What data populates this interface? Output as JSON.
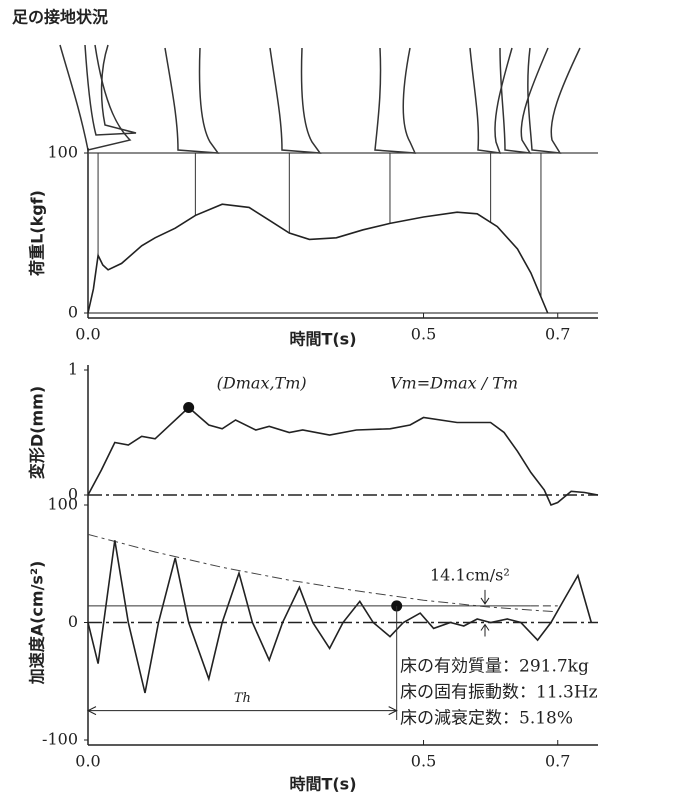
{
  "chart_data": [
    {
      "type": "line",
      "title": "足の接地状況",
      "ylabel": "荷重L(kgf)",
      "xlabel": "時間T(s)",
      "color": "#222",
      "xlim": [
        0,
        0.76
      ],
      "ylim": [
        0,
        100
      ],
      "yticks": [
        0,
        100
      ],
      "xticks": [
        {
          "value": 0,
          "label": "0.0"
        },
        0.5,
        0.7
      ],
      "grid": true,
      "x": [
        0,
        0.008,
        0.015,
        0.022,
        0.03,
        0.05,
        0.08,
        0.1,
        0.13,
        0.16,
        0.2,
        0.24,
        0.27,
        0.3,
        0.33,
        0.37,
        0.41,
        0.45,
        0.5,
        0.55,
        0.58,
        0.61,
        0.64,
        0.66,
        0.675,
        0.685
      ],
      "values": [
        0,
        15,
        36,
        30,
        27,
        31,
        42,
        47,
        53,
        61,
        68,
        66,
        58,
        50,
        46,
        47,
        52,
        56,
        60,
        63,
        62,
        54,
        40,
        25,
        10,
        0
      ],
      "contact_times": [
        0.015,
        0.16,
        0.3,
        0.45,
        0.6,
        0.675
      ]
    },
    {
      "type": "line",
      "ylabel": "変形D(mm)",
      "color": "#222",
      "zero_line": true,
      "xlim": [
        0,
        0.76
      ],
      "ylim": [
        0,
        1
      ],
      "yticks": [
        0,
        1
      ],
      "x": [
        0,
        0.02,
        0.04,
        0.06,
        0.08,
        0.1,
        0.12,
        0.15,
        0.18,
        0.2,
        0.22,
        0.25,
        0.27,
        0.3,
        0.32,
        0.36,
        0.4,
        0.45,
        0.48,
        0.5,
        0.55,
        0.6,
        0.62,
        0.64,
        0.66,
        0.68,
        0.69,
        0.7,
        0.72,
        0.74,
        0.76
      ],
      "values": [
        0,
        0.2,
        0.42,
        0.4,
        0.47,
        0.45,
        0.55,
        0.7,
        0.56,
        0.53,
        0.6,
        0.52,
        0.55,
        0.5,
        0.52,
        0.48,
        0.52,
        0.53,
        0.56,
        0.62,
        0.58,
        0.58,
        0.5,
        0.35,
        0.18,
        0.04,
        -0.08,
        -0.06,
        0.03,
        0.02,
        0
      ],
      "marker": {
        "x": 0.15,
        "y": 0.7,
        "label": "(Dmax,Tm)"
      },
      "annotation": "Vm=Dmax / Tm"
    },
    {
      "type": "line",
      "ylabel": "加速度A(cm/s²)",
      "xlabel": "時間T(s)",
      "color": "#222",
      "zero_line": true,
      "xlim": [
        0,
        0.76
      ],
      "ylim": [
        -100,
        100
      ],
      "yticks": [
        -100,
        0,
        100
      ],
      "xticks": [
        {
          "value": 0,
          "label": "0.0"
        },
        0.5,
        0.7
      ],
      "x": [
        0,
        0.015,
        0.04,
        0.06,
        0.085,
        0.105,
        0.13,
        0.15,
        0.18,
        0.2,
        0.225,
        0.245,
        0.27,
        0.29,
        0.315,
        0.335,
        0.36,
        0.38,
        0.405,
        0.425,
        0.45,
        0.47,
        0.495,
        0.515,
        0.54,
        0.56,
        0.58,
        0.6,
        0.625,
        0.645,
        0.67,
        0.69,
        0.71,
        0.73,
        0.75
      ],
      "values": [
        0,
        -35,
        70,
        0,
        -60,
        0,
        55,
        0,
        -48,
        0,
        42,
        0,
        -32,
        0,
        30,
        0,
        -22,
        0,
        18,
        0,
        -12,
        0,
        8,
        -5,
        0,
        -3,
        3,
        0,
        3,
        0,
        -15,
        0,
        20,
        40,
        0
      ],
      "envelope": {
        "x": [
          0,
          0.1,
          0.2,
          0.3,
          0.4,
          0.5,
          0.6,
          0.7
        ],
        "values": [
          75,
          60,
          47,
          36,
          27,
          19,
          13,
          9
        ]
      },
      "threshold": {
        "value": 14.1,
        "label": "14.1cm/s²",
        "x": 0.46
      },
      "period_label": "Th",
      "info": [
        "床の有効質量：291.7kg",
        "床の固有振動数：11.3Hz",
        "床の減衰定数：5.18%"
      ]
    }
  ]
}
